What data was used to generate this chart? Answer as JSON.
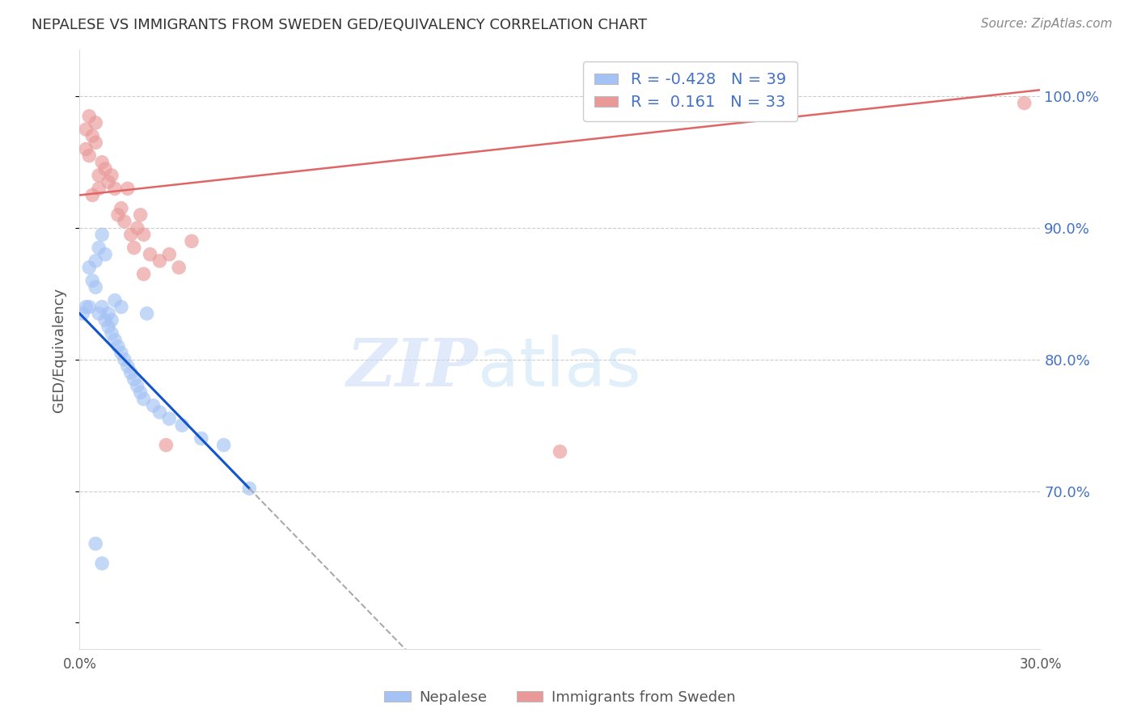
{
  "title": "NEPALESE VS IMMIGRANTS FROM SWEDEN GED/EQUIVALENCY CORRELATION CHART",
  "source": "Source: ZipAtlas.com",
  "ylabel": "GED/Equivalency",
  "xmin": 0.0,
  "xmax": 30.0,
  "ymin": 58.0,
  "ymax": 103.5,
  "legend_r_blue": "-0.428",
  "legend_n_blue": "39",
  "legend_r_pink": " 0.161",
  "legend_n_pink": "33",
  "blue_color": "#a4c2f4",
  "pink_color": "#ea9999",
  "blue_line_color": "#1155cc",
  "pink_line_color": "#e06666",
  "blue_line_x0": 0.0,
  "blue_line_y0": 83.5,
  "blue_line_x1": 5.3,
  "blue_line_y1": 70.2,
  "pink_line_x0": 0.0,
  "pink_line_y0": 92.5,
  "pink_line_x1": 30.0,
  "pink_line_y1": 100.5,
  "blue_solid_end": 5.3,
  "blue_scatter_x": [
    0.1,
    0.2,
    0.3,
    0.3,
    0.4,
    0.5,
    0.5,
    0.6,
    0.6,
    0.7,
    0.7,
    0.8,
    0.8,
    0.9,
    0.9,
    1.0,
    1.0,
    1.1,
    1.1,
    1.2,
    1.3,
    1.3,
    1.4,
    1.5,
    1.6,
    1.7,
    1.8,
    1.9,
    2.0,
    2.1,
    2.3,
    2.5,
    2.8,
    3.2,
    3.8,
    4.5,
    0.5,
    0.7,
    5.3
  ],
  "blue_scatter_y": [
    83.5,
    84.0,
    84.0,
    87.0,
    86.0,
    85.5,
    87.5,
    88.5,
    83.5,
    89.5,
    84.0,
    88.0,
    83.0,
    83.5,
    82.5,
    82.0,
    83.0,
    81.5,
    84.5,
    81.0,
    84.0,
    80.5,
    80.0,
    79.5,
    79.0,
    78.5,
    78.0,
    77.5,
    77.0,
    83.5,
    76.5,
    76.0,
    75.5,
    75.0,
    74.0,
    73.5,
    66.0,
    64.5,
    70.2
  ],
  "pink_scatter_x": [
    0.2,
    0.2,
    0.3,
    0.3,
    0.4,
    0.5,
    0.5,
    0.6,
    0.6,
    0.7,
    0.8,
    0.9,
    1.0,
    1.1,
    1.2,
    1.3,
    1.4,
    1.5,
    1.6,
    1.7,
    1.8,
    1.9,
    2.0,
    2.0,
    2.2,
    2.5,
    2.8,
    3.1,
    3.5,
    0.4,
    2.7,
    15.0,
    29.5
  ],
  "pink_scatter_y": [
    96.0,
    97.5,
    95.5,
    98.5,
    97.0,
    96.5,
    98.0,
    94.0,
    93.0,
    95.0,
    94.5,
    93.5,
    94.0,
    93.0,
    91.0,
    91.5,
    90.5,
    93.0,
    89.5,
    88.5,
    90.0,
    91.0,
    86.5,
    89.5,
    88.0,
    87.5,
    88.0,
    87.0,
    89.0,
    92.5,
    73.5,
    73.0,
    99.5
  ]
}
